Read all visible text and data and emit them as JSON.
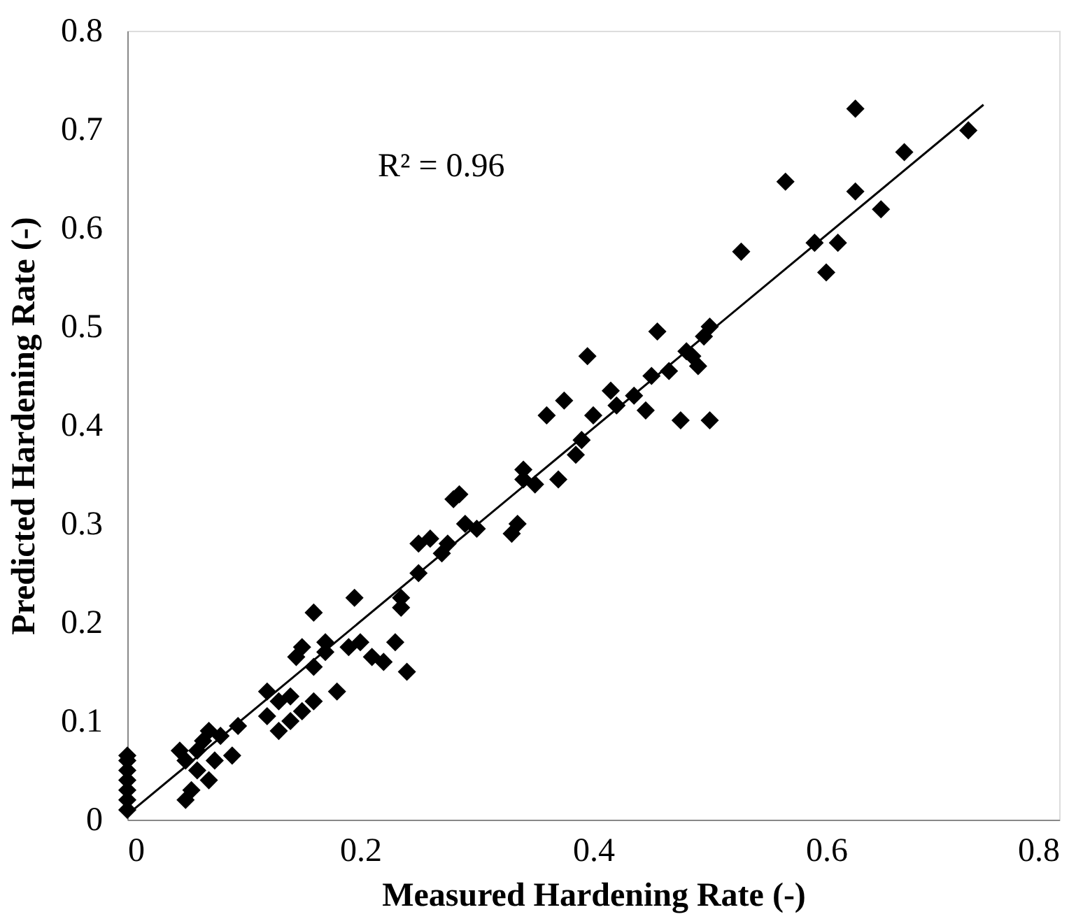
{
  "chart_data": {
    "type": "scatter",
    "xlabel": "Measured Hardening Rate (-)",
    "ylabel": "Predicted Hardening Rate (-)",
    "xlim": [
      0,
      0.8
    ],
    "ylim": [
      0,
      0.8
    ],
    "xticks": [
      0,
      0.2,
      0.4,
      0.6,
      0.8
    ],
    "yticks": [
      0,
      0.1,
      0.2,
      0.3,
      0.4,
      0.5,
      0.6,
      0.7,
      0.8
    ],
    "grid": false,
    "marker": "diamond",
    "annotations": [
      "R² = 0.96"
    ],
    "series": [
      {
        "color": "#000000",
        "x": [
          0,
          0,
          0,
          0,
          0,
          0,
          0,
          0.045,
          0.05,
          0.055,
          0.05,
          0.06,
          0.06,
          0.065,
          0.07,
          0.07,
          0.075,
          0.08,
          0.09,
          0.095,
          0.12,
          0.12,
          0.13,
          0.13,
          0.14,
          0.14,
          0.145,
          0.15,
          0.15,
          0.16,
          0.16,
          0.16,
          0.17,
          0.17,
          0.18,
          0.19,
          0.195,
          0.2,
          0.21,
          0.22,
          0.23,
          0.235,
          0.235,
          0.24,
          0.25,
          0.25,
          0.26,
          0.27,
          0.275,
          0.28,
          0.285,
          0.29,
          0.3,
          0.33,
          0.335,
          0.34,
          0.34,
          0.35,
          0.36,
          0.37,
          0.375,
          0.385,
          0.39,
          0.395,
          0.4,
          0.415,
          0.42,
          0.435,
          0.445,
          0.45,
          0.455,
          0.465,
          0.475,
          0.48,
          0.485,
          0.49,
          0.495,
          0.5,
          0.5,
          0.527,
          0.565,
          0.59,
          0.6,
          0.61,
          0.625,
          0.625,
          0.647,
          0.667,
          0.722
        ],
        "values": [
          0.01,
          0.02,
          0.03,
          0.04,
          0.05,
          0.06,
          0.065,
          0.07,
          0.02,
          0.03,
          0.06,
          0.07,
          0.05,
          0.08,
          0.09,
          0.04,
          0.06,
          0.085,
          0.065,
          0.095,
          0.13,
          0.105,
          0.09,
          0.12,
          0.1,
          0.125,
          0.165,
          0.11,
          0.175,
          0.21,
          0.155,
          0.12,
          0.18,
          0.17,
          0.13,
          0.175,
          0.225,
          0.18,
          0.165,
          0.16,
          0.18,
          0.215,
          0.225,
          0.15,
          0.25,
          0.28,
          0.285,
          0.27,
          0.28,
          0.325,
          0.33,
          0.3,
          0.295,
          0.29,
          0.3,
          0.345,
          0.355,
          0.34,
          0.41,
          0.345,
          0.425,
          0.37,
          0.385,
          0.47,
          0.41,
          0.435,
          0.42,
          0.43,
          0.415,
          0.45,
          0.495,
          0.455,
          0.405,
          0.475,
          0.47,
          0.46,
          0.49,
          0.5,
          0.405,
          0.576,
          0.647,
          0.585,
          0.555,
          0.585,
          0.721,
          0.637,
          0.619,
          0.677,
          0.699
        ]
      },
      {
        "type": "line",
        "marker": "none",
        "line_style": "solid",
        "color": "#000000",
        "x": [
          0,
          0.735
        ],
        "values": [
          0.005,
          0.725
        ]
      }
    ]
  }
}
